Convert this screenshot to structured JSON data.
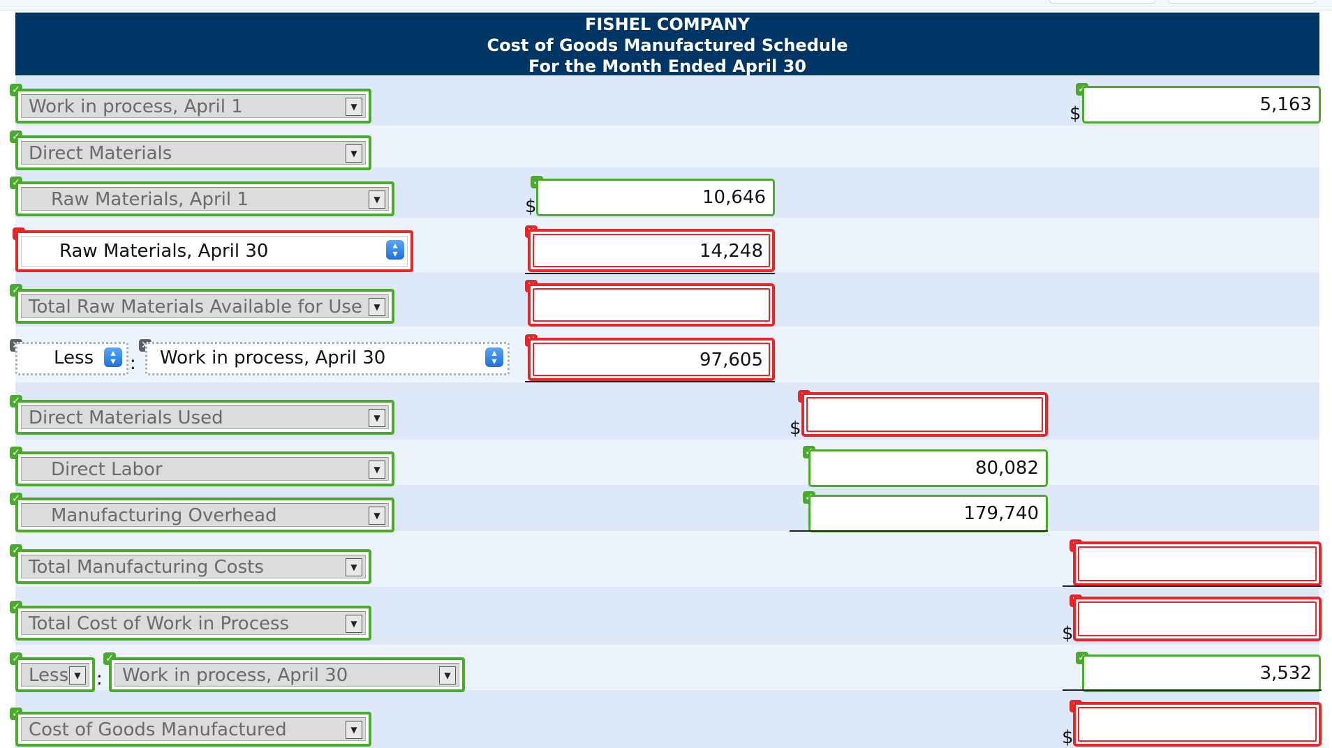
{
  "header": {
    "company": "FISHEL COMPANY",
    "title": "Cost of Goods Manufactured Schedule",
    "period": "For the Month Ended April 30"
  },
  "rows": {
    "wip_begin_label": "Work in process, April 1",
    "wip_begin_value": "5,163",
    "direct_materials_label": "Direct Materials",
    "raw_begin_label": "Raw Materials, April 1",
    "raw_begin_value": "10,646",
    "raw_end_label": "Raw Materials, April 30",
    "raw_end_value": "14,248",
    "total_raw_label": "Total Raw Materials Available for Use",
    "total_raw_value": "",
    "less_label": "Less",
    "less_wip_label": "Work in process, April 30",
    "less_wip_value": "97,605",
    "dm_used_label": "Direct Materials Used",
    "dm_used_value": "",
    "direct_labor_label": "Direct Labor",
    "direct_labor_value": "80,082",
    "mfg_overhead_label": "Manufacturing Overhead",
    "mfg_overhead_value": "179,740",
    "total_mfg_label": "Total Manufacturing Costs",
    "total_mfg_value": "",
    "total_wip_label": "Total Cost of Work in Process",
    "total_wip_value": "",
    "less2_label": "Less",
    "less2_wip_label": "Work in process, April 30",
    "less2_wip_value": "3,532",
    "cogm_label": "Cost of Goods Manufactured",
    "cogm_value": ""
  },
  "symbols": {
    "dollar": "$",
    "colon": ":"
  },
  "colors": {
    "header_bg": "#003665",
    "correct": "#4aaa2c",
    "incorrect": "#e8262a"
  }
}
